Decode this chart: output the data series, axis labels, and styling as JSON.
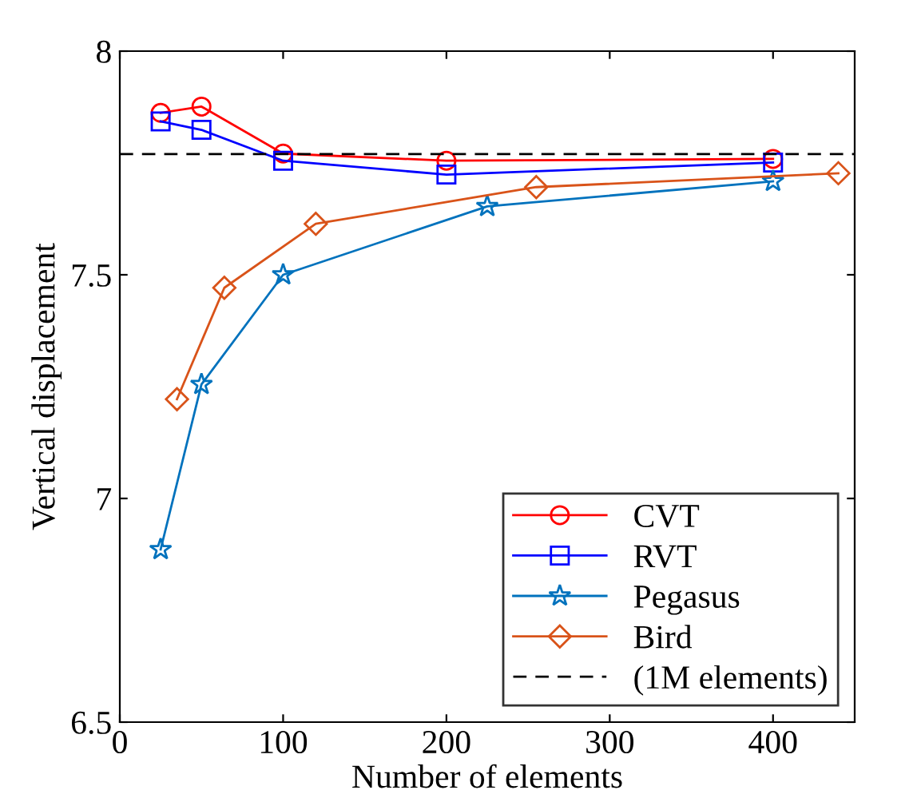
{
  "chart_data": {
    "type": "line",
    "xlabel": "Number of elements",
    "ylabel": "Vertical displacement",
    "xlim": [
      0,
      450
    ],
    "xticks": [
      0,
      100,
      200,
      300,
      400
    ],
    "ylim": [
      6.5,
      8
    ],
    "yticks": [
      6.5,
      7,
      7.5,
      8
    ],
    "grid": false,
    "legend": "bottom right",
    "series": [
      {
        "name": "CVT",
        "color": "#ff0000",
        "marker": "circle",
        "x": [
          25,
          50,
          100,
          200,
          400
        ],
        "values": [
          7.862,
          7.876,
          7.771,
          7.755,
          7.759
        ]
      },
      {
        "name": "RVT",
        "color": "#0000ff",
        "marker": "square",
        "x": [
          25,
          50,
          100,
          200,
          400
        ],
        "values": [
          7.843,
          7.824,
          7.755,
          7.724,
          7.751
        ]
      },
      {
        "name": "Pegasus",
        "color": "#0072bd",
        "marker": "star",
        "x": [
          25,
          50,
          100,
          225,
          400
        ],
        "values": [
          6.886,
          7.255,
          7.5,
          7.653,
          7.709
        ]
      },
      {
        "name": "Bird",
        "color": "#d95319",
        "marker": "diamond",
        "x": [
          35,
          64,
          120,
          255,
          440
        ],
        "values": [
          7.222,
          7.471,
          7.614,
          7.696,
          7.727
        ]
      }
    ],
    "ref_lines": [
      {
        "axis": "y",
        "value": 7.77,
        "label": "(1M elements)",
        "color": "#000000",
        "line_style": "dashed"
      }
    ]
  }
}
